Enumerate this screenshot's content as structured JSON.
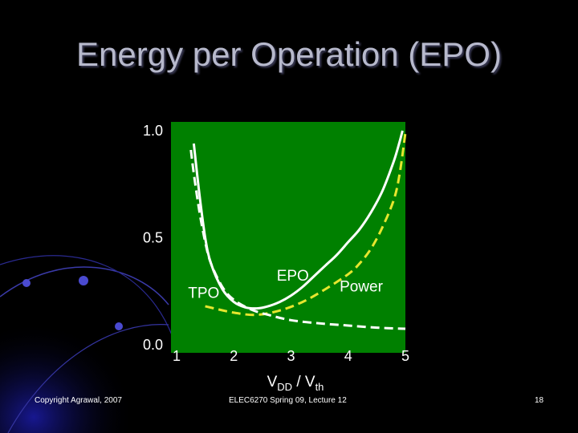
{
  "slide": {
    "title": "Energy per Operation (EPO)",
    "footer_left": "Copyright Agrawal, 2007",
    "footer_center": "ELEC6270 Spring 09, Lecture 12",
    "page_number": "18"
  },
  "colors": {
    "background": "#000000",
    "plot_area": "#008000",
    "epo_curve": "#ffffff",
    "power_curve": "#e6e62e",
    "tpo_curve": "#ffffff",
    "title": "#b7b9cc"
  },
  "chart_data": {
    "type": "line",
    "title": "",
    "xlabel_main": "V",
    "xlabel_sub1": "DD",
    "xlabel_mid": " / V",
    "xlabel_sub2": "th",
    "ylabel": "",
    "xlim": [
      1,
      5
    ],
    "ylim": [
      0.0,
      1.0
    ],
    "x_ticks": [
      "1",
      "2",
      "3",
      "4",
      "5"
    ],
    "y_ticks": [
      "0.0",
      "0.5",
      "1.0"
    ],
    "grid": false,
    "series": [
      {
        "name": "EPO",
        "style": "solid",
        "color": "#ffffff",
        "x": [
          1.3,
          1.4,
          1.5,
          1.6,
          1.8,
          2.0,
          2.2,
          2.4,
          2.6,
          2.8,
          3.0,
          3.2,
          3.4,
          3.6,
          3.8,
          4.0,
          4.2,
          4.4,
          4.6,
          4.8,
          4.9,
          4.95
        ],
        "y": [
          0.94,
          0.7,
          0.5,
          0.38,
          0.26,
          0.2,
          0.175,
          0.17,
          0.18,
          0.2,
          0.23,
          0.27,
          0.32,
          0.37,
          0.42,
          0.48,
          0.54,
          0.62,
          0.72,
          0.86,
          0.95,
          1.0
        ]
      },
      {
        "name": "Power",
        "style": "dashed",
        "color": "#e6e62e",
        "x": [
          1.5,
          2.0,
          2.4,
          2.8,
          3.2,
          3.6,
          4.0,
          4.2,
          4.4,
          4.6,
          4.8,
          4.9,
          5.0
        ],
        "y": [
          0.18,
          0.15,
          0.14,
          0.16,
          0.2,
          0.26,
          0.33,
          0.38,
          0.45,
          0.55,
          0.68,
          0.8,
          0.99
        ]
      },
      {
        "name": "TPO",
        "style": "dashed",
        "color": "#ffffff",
        "x": [
          1.25,
          1.3,
          1.4,
          1.5,
          1.6,
          1.8,
          2.0,
          2.3,
          2.6,
          3.0,
          3.5,
          4.0,
          4.5,
          5.0
        ],
        "y": [
          0.91,
          0.8,
          0.62,
          0.48,
          0.38,
          0.27,
          0.21,
          0.165,
          0.14,
          0.115,
          0.1,
          0.09,
          0.08,
          0.075
        ]
      }
    ],
    "annotations": [
      {
        "text": "EPO",
        "x": 2.75,
        "y": 0.3
      },
      {
        "text": "Power",
        "x": 3.85,
        "y": 0.25
      },
      {
        "text": "TPO",
        "x": 1.2,
        "y": 0.22
      }
    ]
  }
}
